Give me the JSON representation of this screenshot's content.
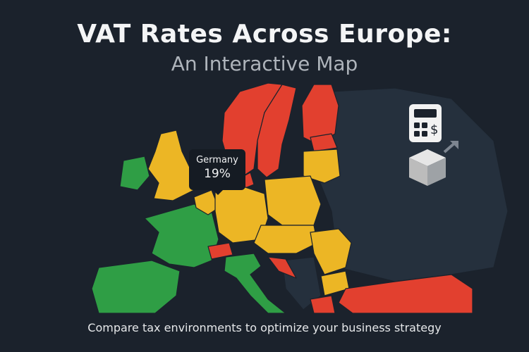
{
  "header": {
    "title": "VAT Rates Across Europe:",
    "subtitle": "An Interactive Map"
  },
  "tooltip": {
    "country": "Germany",
    "rate": "19%"
  },
  "footer": {
    "caption": "Compare tax environments to optimize your business strategy"
  },
  "colors": {
    "background": "#1b222c",
    "high_rate": "#e2402f",
    "mid_rate": "#ecb625",
    "low_rate": "#2f9e45",
    "no_data": "#25303d"
  },
  "icons": [
    "calculator-dollar-icon",
    "package-box-icon",
    "arrow-up-right-icon"
  ]
}
